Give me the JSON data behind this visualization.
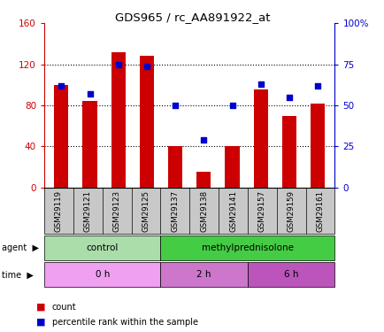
{
  "title": "GDS965 / rc_AA891922_at",
  "samples": [
    "GSM29119",
    "GSM29121",
    "GSM29123",
    "GSM29125",
    "GSM29137",
    "GSM29138",
    "GSM29141",
    "GSM29157",
    "GSM29159",
    "GSM29161"
  ],
  "counts": [
    100,
    84,
    132,
    128,
    40,
    15,
    40,
    96,
    70,
    82
  ],
  "percentile_ranks": [
    62,
    57,
    75,
    74,
    50,
    29,
    50,
    63,
    55,
    62
  ],
  "ylim_left": [
    0,
    160
  ],
  "ylim_right": [
    0,
    100
  ],
  "yticks_left": [
    0,
    40,
    80,
    120,
    160
  ],
  "yticks_right": [
    0,
    25,
    50,
    75,
    100
  ],
  "yticklabels_right": [
    "0",
    "25",
    "50",
    "75",
    "100%"
  ],
  "bar_color": "#cc0000",
  "dot_color": "#0000cc",
  "agent_labels": [
    {
      "text": "control",
      "start": 0,
      "end": 4,
      "color": "#aaddaa"
    },
    {
      "text": "methylprednisolone",
      "start": 4,
      "end": 10,
      "color": "#44cc44"
    }
  ],
  "time_labels": [
    {
      "text": "0 h",
      "start": 0,
      "end": 4,
      "color": "#f0a0f0"
    },
    {
      "text": "2 h",
      "start": 4,
      "end": 7,
      "color": "#cc77cc"
    },
    {
      "text": "6 h",
      "start": 7,
      "end": 10,
      "color": "#bb55bb"
    }
  ],
  "legend_count_label": "count",
  "legend_pct_label": "percentile rank within the sample",
  "ax_bg_color": "#ffffff",
  "fig_bg_color": "#ffffff",
  "tick_label_color_left": "#cc0000",
  "tick_label_color_right": "#0000cc",
  "title_color": "#000000",
  "gray_bg": "#c8c8c8"
}
